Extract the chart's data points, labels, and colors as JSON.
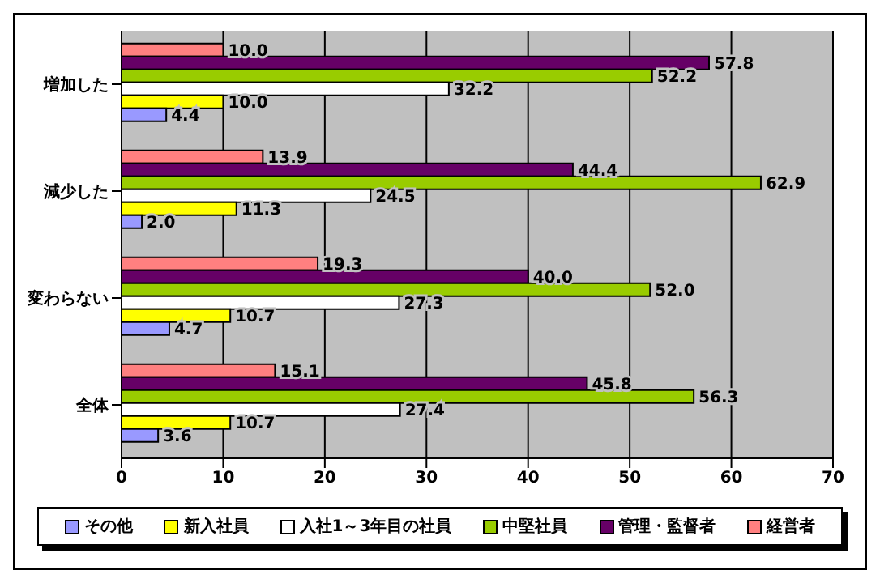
{
  "chart_data": {
    "type": "bar",
    "orientation": "horizontal",
    "categories": [
      "増加した",
      "減少した",
      "変わらない",
      "全体"
    ],
    "series": [
      {
        "name": "その他",
        "color": "#9999ff",
        "values": [
          4.4,
          2.0,
          4.7,
          3.6
        ],
        "value_labels": [
          "4.4",
          "2.0",
          "4.7",
          "3.6"
        ]
      },
      {
        "name": "新入社員",
        "color": "#ffff00",
        "values": [
          10.0,
          11.3,
          10.7,
          10.7
        ],
        "value_labels": [
          "10.0",
          "11.3",
          "10.7",
          "10.7"
        ]
      },
      {
        "name": "入社1～3年目の社員",
        "color": "#ffffff",
        "values": [
          32.2,
          24.5,
          27.3,
          27.4
        ],
        "value_labels": [
          "32.2",
          "24.5",
          "27.3",
          "27.4"
        ]
      },
      {
        "name": "中堅社員",
        "color": "#99cc00",
        "values": [
          52.2,
          62.9,
          52.0,
          56.3
        ],
        "value_labels": [
          "52.2",
          "62.9",
          "52.0",
          "56.3"
        ]
      },
      {
        "name": "管理・監督者",
        "color": "#660066",
        "values": [
          57.8,
          44.4,
          40.0,
          45.8
        ],
        "value_labels": [
          "57.8",
          "44.4",
          "40.0",
          "45.8"
        ]
      },
      {
        "name": "経営者",
        "color": "#ff8080",
        "values": [
          10.0,
          13.9,
          19.3,
          15.1
        ],
        "value_labels": [
          "10.0",
          "13.9",
          "19.3",
          "15.1"
        ]
      }
    ],
    "xlim": [
      0,
      70
    ],
    "xticks": [
      0,
      10,
      20,
      30,
      40,
      50,
      60,
      70
    ],
    "grid": "x",
    "legend": "bottom"
  }
}
